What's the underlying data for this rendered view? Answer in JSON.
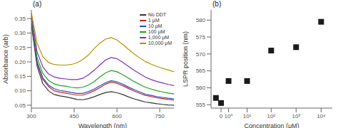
{
  "chart_data": [
    {
      "type": "line",
      "title": "(a)",
      "xlabel": "Wavelength (nm)",
      "ylabel": "Absorbance (arb)",
      "x": [
        300,
        320,
        340,
        360,
        380,
        400,
        420,
        440,
        460,
        480,
        500,
        520,
        540,
        560,
        580,
        600,
        620,
        640,
        660,
        680,
        700,
        720,
        740,
        760,
        780,
        800
      ],
      "series": [
        {
          "name": "No DDT",
          "color": "#333333",
          "values": [
            0.33,
            0.185,
            0.125,
            0.1,
            0.087,
            0.082,
            0.079,
            0.075,
            0.07,
            0.069,
            0.073,
            0.079,
            0.087,
            0.094,
            0.097,
            0.093,
            0.087,
            0.079,
            0.072,
            0.066,
            0.061,
            0.058,
            0.055,
            0.053,
            0.051,
            0.05
          ]
        },
        {
          "name": "1 μM",
          "color": "#cc2020",
          "values": [
            0.335,
            0.195,
            0.14,
            0.115,
            0.1,
            0.095,
            0.092,
            0.088,
            0.085,
            0.085,
            0.091,
            0.1,
            0.111,
            0.123,
            0.13,
            0.126,
            0.118,
            0.108,
            0.099,
            0.091,
            0.084,
            0.08,
            0.076,
            0.073,
            0.07,
            0.068
          ]
        },
        {
          "name": "10 μM",
          "color": "#2050c0",
          "values": [
            0.34,
            0.2,
            0.145,
            0.12,
            0.107,
            0.101,
            0.098,
            0.094,
            0.091,
            0.091,
            0.097,
            0.106,
            0.117,
            0.128,
            0.135,
            0.131,
            0.123,
            0.113,
            0.104,
            0.096,
            0.088,
            0.084,
            0.08,
            0.077,
            0.074,
            0.072
          ]
        },
        {
          "name": "100 μM",
          "color": "#20a020",
          "values": [
            0.35,
            0.215,
            0.16,
            0.136,
            0.124,
            0.118,
            0.116,
            0.112,
            0.11,
            0.112,
            0.12,
            0.132,
            0.148,
            0.162,
            0.17,
            0.166,
            0.156,
            0.144,
            0.132,
            0.122,
            0.112,
            0.106,
            0.1,
            0.096,
            0.092,
            0.089
          ]
        },
        {
          "name": "1,000 μM",
          "color": "#8030b0",
          "values": [
            0.36,
            0.235,
            0.183,
            0.158,
            0.148,
            0.143,
            0.141,
            0.139,
            0.139,
            0.143,
            0.155,
            0.171,
            0.189,
            0.207,
            0.215,
            0.211,
            0.199,
            0.185,
            0.171,
            0.159,
            0.147,
            0.139,
            0.132,
            0.127,
            0.122,
            0.118
          ]
        },
        {
          "name": "10,000 μM",
          "color": "#b89000",
          "values": [
            0.37,
            0.265,
            0.218,
            0.198,
            0.191,
            0.189,
            0.189,
            0.191,
            0.197,
            0.208,
            0.224,
            0.246,
            0.265,
            0.279,
            0.284,
            0.276,
            0.261,
            0.244,
            0.228,
            0.214,
            0.201,
            0.192,
            0.184,
            0.178,
            0.172,
            0.166
          ]
        }
      ],
      "xlim": [
        300,
        800
      ],
      "ylim": [
        0.04,
        0.38
      ],
      "xticks": [
        300,
        450,
        600,
        750
      ],
      "yticks": [
        0.05,
        {
          "value": 0.1,
          "label": "0.10"
        },
        0.15,
        {
          "value": 0.2,
          "label": "0.20"
        },
        0.25,
        {
          "value": 0.3,
          "label": "0.30"
        },
        0.35
      ],
      "legend": "upper right",
      "grid": false
    },
    {
      "type": "scatter",
      "title": "(b)",
      "xlabel": "Concentration (μM)",
      "ylabel": "LSPR position (nm)",
      "x": [
        -0.6,
        0.0,
        1.0,
        10.0,
        100.0,
        1000.0,
        10000.0
      ],
      "values": [
        557.0,
        555.5,
        562.0,
        562.0,
        571.0,
        572.0,
        579.5
      ],
      "color": "#1a1a1a",
      "marker": "square",
      "log": "x",
      "xlim": [
        -1.5,
        28000
      ],
      "xticks": [
        0,
        {
          "value": 1,
          "label": "10⁰"
        },
        {
          "value": 10,
          "label": "10¹"
        },
        {
          "value": 100,
          "label": "10²"
        },
        {
          "value": 1000,
          "label": "10³"
        },
        {
          "value": 10000,
          "label": "10⁴"
        }
      ],
      "ylim": [
        554,
        583
      ],
      "yticks": [
        555,
        560,
        565,
        570,
        575,
        580
      ],
      "grid": false
    }
  ]
}
